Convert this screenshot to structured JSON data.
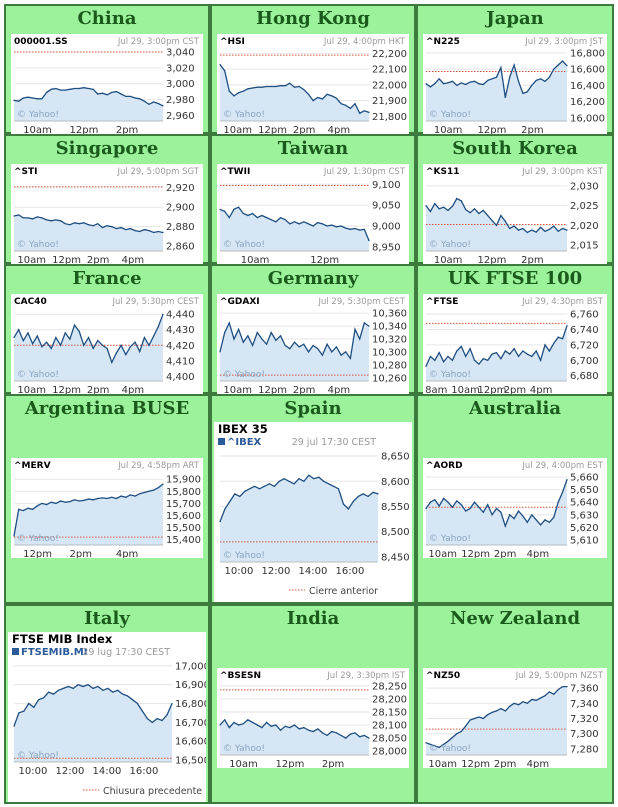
{
  "colors": {
    "page_bg": "#ffffff",
    "cell_bg": "#9bf29a",
    "cell_border": "#3d7a3d",
    "title_color": "#1a5a1a",
    "line": "#1f4e80",
    "fill": "#d6e6f4",
    "prev_close": "#d9553a",
    "watermark": "#8aa4c0"
  },
  "chart_data": [
    {
      "id": "china",
      "type": "area",
      "region": "China",
      "symbol": "000001.SS",
      "meta": "Jul 29, 3:00pm CST",
      "watermark": "© Yahoo!",
      "yticks": [
        3040,
        3020,
        3000,
        2980,
        2960
      ],
      "ylim": [
        2953,
        3045
      ],
      "xticks": [
        "10am",
        "12pm",
        "2pm"
      ],
      "prev_close": 3040,
      "y": [
        2979,
        2978,
        2982,
        2983,
        2982,
        2981,
        2981,
        2989,
        2993,
        2994,
        2992,
        2992,
        2993,
        2994,
        2994,
        2995,
        2994,
        2993,
        2987,
        2988,
        2986,
        2989,
        2990,
        2987,
        2984,
        2984,
        2982,
        2981,
        2978,
        2974,
        2977,
        2975,
        2972
      ]
    },
    {
      "id": "hongkong",
      "type": "area",
      "region": "Hong Kong",
      "symbol": "^HSI",
      "meta": "Jul 29, 4:00pm HKT",
      "watermark": "© Yahoo!",
      "yticks": [
        22200,
        22100,
        22000,
        21900,
        21800
      ],
      "ylim": [
        21770,
        22235
      ],
      "xticks": [
        "10am",
        "12pm",
        "2pm",
        "4pm"
      ],
      "prev_close": 22190,
      "y": [
        22130,
        22090,
        21960,
        21930,
        21950,
        21960,
        21975,
        21980,
        21985,
        21985,
        21990,
        21990,
        21990,
        21995,
        21995,
        22010,
        21985,
        21990,
        21970,
        21940,
        21900,
        21920,
        21910,
        21940,
        21930,
        21915,
        21880,
        21870,
        21850,
        21880,
        21820,
        21835,
        21825
      ]
    },
    {
      "id": "japan",
      "type": "area",
      "region": "Japan",
      "symbol": "^N225",
      "meta": "Jul 29, 3:00pm JST",
      "watermark": "© Yahoo!",
      "yticks": [
        16800,
        16600,
        16400,
        16200,
        16000
      ],
      "ylim": [
        15960,
        16860
      ],
      "xticks": [
        "10am",
        "12pm",
        "2pm"
      ],
      "prev_close": 16570,
      "y": [
        16420,
        16380,
        16420,
        16480,
        16420,
        16430,
        16450,
        16400,
        16430,
        16410,
        16440,
        16450,
        16420,
        16410,
        16460,
        16480,
        16500,
        16620,
        16250,
        16500,
        16650,
        16450,
        16300,
        16320,
        16400,
        16460,
        16480,
        16450,
        16500,
        16600,
        16650,
        16700,
        16640
      ]
    },
    {
      "id": "singapore",
      "type": "area",
      "region": "Singapore",
      "symbol": "^STI",
      "meta": "Jul 29, 5:00pm SGT",
      "watermark": "© Yahoo!",
      "yticks": [
        2920,
        2900,
        2880,
        2860
      ],
      "ylim": [
        2855,
        2930
      ],
      "xticks": [
        "10am",
        "12pm",
        "2pm",
        "4pm"
      ],
      "prev_close": 2921,
      "y": [
        2891,
        2892,
        2889,
        2889,
        2888,
        2890,
        2889,
        2887,
        2886,
        2887,
        2886,
        2883,
        2882,
        2884,
        2883,
        2884,
        2882,
        2881,
        2883,
        2879,
        2881,
        2880,
        2878,
        2879,
        2877,
        2878,
        2876,
        2875,
        2877,
        2876,
        2874,
        2875,
        2874
      ]
    },
    {
      "id": "taiwan",
      "type": "area",
      "region": "Taiwan",
      "symbol": "^TWII",
      "meta": "Jul 29, 1:30pm CST",
      "watermark": "© Yahoo!",
      "yticks": [
        9100,
        9050,
        9000,
        8950
      ],
      "ylim": [
        8940,
        9115
      ],
      "xticks": [
        "10am",
        "12pm"
      ],
      "prev_close": 9097,
      "y": [
        9040,
        9035,
        9020,
        9040,
        9045,
        9030,
        9025,
        9030,
        9020,
        9025,
        9020,
        9015,
        9010,
        9020,
        9015,
        9005,
        9010,
        9005,
        9010,
        9005,
        9000,
        9008,
        9005,
        9000,
        9002,
        8998,
        9000,
        8995,
        8992,
        8994,
        8990,
        8992,
        8965
      ]
    },
    {
      "id": "southkorea",
      "type": "area",
      "region": "South Korea",
      "symbol": "^KS11",
      "meta": "Jul 29, 3:00pm KST",
      "watermark": "© Yahoo!",
      "yticks": [
        2030,
        2025,
        2020,
        2015
      ],
      "ylim": [
        2013.5,
        2032
      ],
      "xticks": [
        "10am",
        "12pm",
        "2pm"
      ],
      "prev_close": 2020.2,
      "y": [
        2025.0,
        2023.5,
        2025.5,
        2024.2,
        2024.6,
        2023.8,
        2024.8,
        2026.8,
        2026.2,
        2024.0,
        2023.2,
        2024.2,
        2023.0,
        2023.8,
        2022.5,
        2021.2,
        2020.0,
        2022.5,
        2021.0,
        2019.2,
        2019.8,
        2018.8,
        2019.2,
        2018.2,
        2018.8,
        2018.3,
        2019.5,
        2018.5,
        2019.0,
        2019.8,
        2018.5,
        2019.2,
        2018.8
      ]
    },
    {
      "id": "france",
      "type": "area",
      "region": "France",
      "symbol": "CAC40",
      "meta": "Jul 29, 5:30pm CEST",
      "watermark": "© Yahoo!",
      "yticks": [
        4440,
        4430,
        4420,
        4410,
        4400
      ],
      "ylim": [
        4397,
        4444
      ],
      "xticks": [
        "10am",
        "12pm",
        "2pm",
        "4pm"
      ],
      "prev_close": 4420,
      "y": [
        4425,
        4430,
        4423,
        4428,
        4421,
        4426,
        4419,
        4422,
        4418,
        4425,
        4420,
        4428,
        4424,
        4433,
        4429,
        4420,
        4425,
        4418,
        4423,
        4420,
        4418,
        4409,
        4415,
        4420,
        4414,
        4419,
        4422,
        4416,
        4425,
        4420,
        4426,
        4432,
        4440
      ]
    },
    {
      "id": "germany",
      "type": "area",
      "region": "Germany",
      "symbol": "^GDAXI",
      "meta": "Jul 29, 5:30pm CEST",
      "watermark": "© Yahoo!",
      "yticks": [
        10360,
        10340,
        10320,
        10300,
        10280,
        10260
      ],
      "ylim": [
        10255,
        10368
      ],
      "xticks": [
        "10am",
        "12pm",
        "2pm",
        "4pm"
      ],
      "prev_close": 10264,
      "y": [
        10300,
        10330,
        10345,
        10320,
        10335,
        10315,
        10325,
        10310,
        10330,
        10320,
        10312,
        10330,
        10318,
        10325,
        10310,
        10305,
        10315,
        10308,
        10312,
        10300,
        10310,
        10305,
        10295,
        10312,
        10300,
        10308,
        10295,
        10300,
        10290,
        10335,
        10320,
        10345,
        10340
      ]
    },
    {
      "id": "uk",
      "type": "area",
      "region": "UK FTSE 100",
      "symbol": "^FTSE",
      "meta": "Jul 29, 4:30pm BST",
      "watermark": "© Yahoo!",
      "yticks": [
        6760,
        6740,
        6720,
        6700,
        6680
      ],
      "ylim": [
        6673,
        6768
      ],
      "xticks": [
        "8am",
        "10am",
        "12pm",
        "2pm",
        "4pm"
      ],
      "prev_close": 6748,
      "y": [
        6692,
        6705,
        6700,
        6710,
        6698,
        6705,
        6700,
        6712,
        6718,
        6705,
        6715,
        6700,
        6695,
        6702,
        6700,
        6708,
        6710,
        6702,
        6712,
        6708,
        6715,
        6705,
        6712,
        6708,
        6705,
        6712,
        6700,
        6720,
        6712,
        6722,
        6730,
        6728,
        6745
      ]
    },
    {
      "id": "argentina",
      "type": "area",
      "region": "Argentina BUSE",
      "symbol": "^MERV",
      "meta": "Jul 29, 4:58pm ART",
      "watermark": "© Yahoo!",
      "yticks": [
        15900,
        15800,
        15700,
        15600,
        15500,
        15400
      ],
      "ylim": [
        15355,
        15960
      ],
      "xticks": [
        "12pm",
        "2pm",
        "4pm"
      ],
      "prev_close": 15420,
      "y": [
        15430,
        15650,
        15640,
        15660,
        15650,
        15680,
        15700,
        15690,
        15710,
        15700,
        15720,
        15710,
        15715,
        15730,
        15720,
        15725,
        15735,
        15730,
        15740,
        15745,
        15740,
        15750,
        15740,
        15760,
        15750,
        15770,
        15760,
        15780,
        15790,
        15800,
        15810,
        15830,
        15860
      ]
    },
    {
      "id": "spain",
      "type": "area",
      "region": "Spain",
      "title": "IBEX 35",
      "symbol": "^IBEX",
      "meta": "29 jul 17:30 CEST",
      "watermark": "© Yahoo!",
      "yticks": [
        8650,
        8600,
        8550,
        8500,
        8450
      ],
      "ylim": [
        8440,
        8658
      ],
      "xticks": [
        "10:00",
        "12:00",
        "14:00",
        "16:00"
      ],
      "prev_close": 8480,
      "legend": "Cierre anterior",
      "y": [
        8520,
        8545,
        8560,
        8575,
        8570,
        8580,
        8585,
        8590,
        8585,
        8590,
        8595,
        8590,
        8600,
        8605,
        8600,
        8595,
        8605,
        8600,
        8612,
        8605,
        8608,
        8600,
        8595,
        8590,
        8585,
        8555,
        8545,
        8560,
        8570,
        8575,
        8570,
        8578,
        8575
      ]
    },
    {
      "id": "australia",
      "type": "area",
      "region": "Australia",
      "symbol": "^AORD",
      "meta": "Jul 29, 4:00pm EST",
      "watermark": "© Yahoo!",
      "yticks": [
        5660,
        5650,
        5640,
        5630,
        5620,
        5610
      ],
      "ylim": [
        5606,
        5664
      ],
      "xticks": [
        "10am",
        "12pm",
        "2pm",
        "4pm"
      ],
      "prev_close": 5636,
      "y": [
        5635,
        5640,
        5642,
        5637,
        5643,
        5640,
        5636,
        5641,
        5638,
        5633,
        5635,
        5640,
        5636,
        5632,
        5638,
        5630,
        5635,
        5632,
        5621,
        5630,
        5627,
        5633,
        5629,
        5624,
        5630,
        5626,
        5622,
        5626,
        5624,
        5628,
        5640,
        5648,
        5658
      ]
    },
    {
      "id": "italy",
      "type": "area",
      "region": "Italy",
      "title": "FTSE MIB Index",
      "symbol": "FTSEMIB.MI",
      "meta": "29 lug 17:30 CEST",
      "watermark": "© Yahoo!",
      "yticks": [
        17000,
        16900,
        16800,
        16700,
        16600,
        16500
      ],
      "ylim": [
        16490,
        17020
      ],
      "xticks": [
        "10:00",
        "12:00",
        "14:00",
        "16:00"
      ],
      "prev_close": 16510,
      "legend": "Chiusura precedente",
      "y": [
        16680,
        16750,
        16760,
        16800,
        16780,
        16820,
        16830,
        16860,
        16850,
        16870,
        16880,
        16890,
        16880,
        16900,
        16890,
        16900,
        16880,
        16890,
        16870,
        16880,
        16860,
        16870,
        16850,
        16840,
        16820,
        16800,
        16760,
        16720,
        16700,
        16720,
        16710,
        16740,
        16800
      ]
    },
    {
      "id": "india",
      "type": "area",
      "region": "India",
      "symbol": "^BSESN",
      "meta": "Jul 29, 3:30pm IST",
      "watermark": "© Yahoo!",
      "yticks": [
        28250,
        28200,
        28150,
        28100,
        28050,
        28000
      ],
      "ylim": [
        27985,
        28265
      ],
      "xticks": [
        "10am",
        "12pm",
        "2pm"
      ],
      "prev_close": 28235,
      "y": [
        28100,
        28120,
        28090,
        28110,
        28100,
        28105,
        28120,
        28110,
        28100,
        28090,
        28110,
        28095,
        28100,
        28080,
        28095,
        28090,
        28100,
        28085,
        28090,
        28080,
        28075,
        28085,
        28070,
        28060,
        28075,
        28070,
        28060,
        28050,
        28065,
        28070,
        28055,
        28060,
        28050
      ]
    },
    {
      "id": "newzealand",
      "type": "area",
      "region": "New Zealand",
      "symbol": "^NZ50",
      "meta": "Jul 29, 5:00pm NZST",
      "watermark": "© Yahoo!",
      "yticks": [
        7360,
        7340,
        7320,
        7300,
        7280
      ],
      "ylim": [
        7272,
        7368
      ],
      "xticks": [
        "10am",
        "12pm",
        "2pm",
        "4pm"
      ],
      "prev_close": 7306,
      "y": [
        7288,
        7286,
        7284,
        7282,
        7286,
        7290,
        7295,
        7300,
        7303,
        7310,
        7318,
        7320,
        7322,
        7320,
        7325,
        7328,
        7330,
        7333,
        7330,
        7336,
        7340,
        7338,
        7342,
        7340,
        7345,
        7344,
        7347,
        7350,
        7355,
        7352,
        7358,
        7362,
        7362
      ]
    }
  ]
}
